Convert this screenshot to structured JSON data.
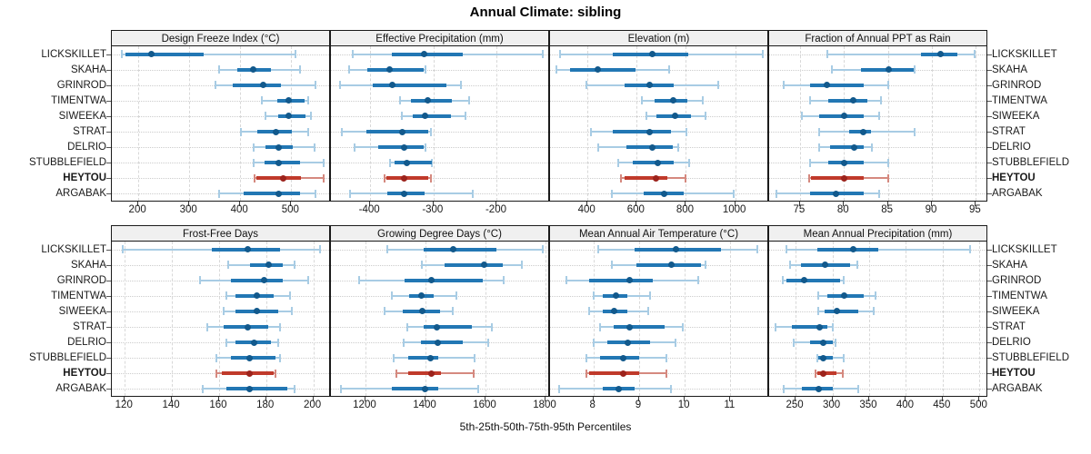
{
  "title": "Annual Climate: sibling",
  "caption": "5th-25th-50th-75th-95th Percentiles",
  "sites": [
    "LICKSKILLET",
    "SKAHA",
    "GRINROD",
    "TIMENTWA",
    "SIWEEKA",
    "STRAT",
    "DELRIO",
    "STUBBLEFIELD",
    "HEYTOU",
    "ARGABAK"
  ],
  "highlight_site": "HEYTOU",
  "percentiles": [
    5,
    25,
    50,
    75,
    95
  ],
  "colors": {
    "blue_dot": "#12598c",
    "blue_bar": "#2277b4",
    "blue_whisker": "#a8cce4",
    "red_dot": "#9c231c",
    "red_bar": "#c03a2b",
    "red_whisker": "#d5897f",
    "header_bg": "#f0f0f0",
    "panel_border": "#1a1a1a",
    "grid": "#d8d8d8"
  },
  "chart_data": [
    {
      "type": "dot-whisker",
      "title": "Design Freeze Index (°C)",
      "domain": [
        148,
        578
      ],
      "ticks": [
        200,
        300,
        400,
        500
      ],
      "rows": [
        {
          "site": "LICKSKILLET",
          "values": [
            168,
            175,
            225,
            328,
            508
          ]
        },
        {
          "site": "SKAHA",
          "values": [
            359,
            394,
            426,
            461,
            518
          ]
        },
        {
          "site": "GRINROD",
          "values": [
            351,
            386,
            445,
            480,
            547
          ]
        },
        {
          "site": "TIMENTWA",
          "values": [
            442,
            472,
            495,
            526,
            533
          ]
        },
        {
          "site": "SIWEEKA",
          "values": [
            450,
            475,
            495,
            528,
            539
          ]
        },
        {
          "site": "STRAT",
          "values": [
            401,
            434,
            470,
            502,
            534
          ]
        },
        {
          "site": "DELRIO",
          "values": [
            427,
            450,
            476,
            503,
            546
          ]
        },
        {
          "site": "STUBBLEFIELD",
          "values": [
            427,
            447,
            476,
            518,
            564
          ]
        },
        {
          "site": "HEYTOU",
          "values": [
            428,
            432,
            484,
            519,
            564
          ]
        },
        {
          "site": "ARGABAK",
          "values": [
            358,
            406,
            476,
            518,
            548
          ]
        }
      ]
    },
    {
      "type": "dot-whisker",
      "title": "Effective Precipitation (mm)",
      "domain": [
        -462,
        -116
      ],
      "ticks": [
        -400,
        -300,
        -200
      ],
      "rows": [
        {
          "site": "LICKSKILLET",
          "values": [
            -427,
            -366,
            -315,
            -254,
            -127
          ]
        },
        {
          "site": "SKAHA",
          "values": [
            -434,
            -405,
            -369,
            -316,
            -313
          ]
        },
        {
          "site": "GRINROD",
          "values": [
            -448,
            -396,
            -365,
            -279,
            -257
          ]
        },
        {
          "site": "TIMENTWA",
          "values": [
            -353,
            -335,
            -309,
            -271,
            -244
          ]
        },
        {
          "site": "SIWEEKA",
          "values": [
            -350,
            -333,
            -314,
            -273,
            -249
          ]
        },
        {
          "site": "STRAT",
          "values": [
            -445,
            -406,
            -350,
            -308,
            -304
          ]
        },
        {
          "site": "DELRIO",
          "values": [
            -424,
            -388,
            -347,
            -315,
            -313
          ]
        },
        {
          "site": "STUBBLEFIELD",
          "values": [
            -369,
            -361,
            -342,
            -303,
            -302
          ]
        },
        {
          "site": "HEYTOU",
          "values": [
            -377,
            -374,
            -347,
            -308,
            -304
          ]
        },
        {
          "site": "ARGABAK",
          "values": [
            -432,
            -373,
            -346,
            -314,
            -238
          ]
        }
      ]
    },
    {
      "type": "dot-whisker",
      "title": "Elevation (m)",
      "domain": [
        248,
        1138
      ],
      "ticks": [
        400,
        600,
        800,
        1000
      ],
      "rows": [
        {
          "site": "LICKSKILLET",
          "values": [
            288,
            502,
            662,
            809,
            1113
          ]
        },
        {
          "site": "SKAHA",
          "values": [
            273,
            330,
            441,
            594,
            732
          ]
        },
        {
          "site": "GRINROD",
          "values": [
            397,
            551,
            654,
            752,
            930
          ]
        },
        {
          "site": "TIMENTWA",
          "values": [
            622,
            671,
            749,
            805,
            868
          ]
        },
        {
          "site": "SIWEEKA",
          "values": [
            638,
            681,
            756,
            822,
            881
          ]
        },
        {
          "site": "STRAT",
          "values": [
            415,
            502,
            654,
            738,
            801
          ]
        },
        {
          "site": "DELRIO",
          "values": [
            444,
            558,
            662,
            745,
            769
          ]
        },
        {
          "site": "STUBBLEFIELD",
          "values": [
            524,
            585,
            685,
            752,
            812
          ]
        },
        {
          "site": "HEYTOU",
          "values": [
            535,
            551,
            680,
            725,
            800
          ]
        },
        {
          "site": "ARGABAK",
          "values": [
            498,
            630,
            711,
            790,
            995
          ]
        }
      ]
    },
    {
      "type": "dot-whisker",
      "title": "Fraction of Annual PPT as Rain",
      "domain": [
        71.5,
        96.4
      ],
      "ticks": [
        75,
        80,
        85,
        90,
        95
      ],
      "rows": [
        {
          "site": "LICKSKILLET",
          "values": [
            78.1,
            88.8,
            91.0,
            92.9,
            94.9
          ]
        },
        {
          "site": "SKAHA",
          "values": [
            78.6,
            81.9,
            85.1,
            87.9,
            88.0
          ]
        },
        {
          "site": "GRINROD",
          "values": [
            73.2,
            76.2,
            78.1,
            82.2,
            85.0
          ]
        },
        {
          "site": "TIMENTWA",
          "values": [
            76.2,
            78.2,
            81.1,
            82.7,
            84.2
          ]
        },
        {
          "site": "SIWEEKA",
          "values": [
            75.2,
            77.2,
            80.0,
            82.2,
            84.0
          ]
        },
        {
          "site": "STRAT",
          "values": [
            77.2,
            80.6,
            82.2,
            83.1,
            88.0
          ]
        },
        {
          "site": "DELRIO",
          "values": [
            77.2,
            78.4,
            81.2,
            82.2,
            83.2
          ]
        },
        {
          "site": "STUBBLEFIELD",
          "values": [
            76.2,
            78.2,
            80.0,
            82.2,
            85.0
          ]
        },
        {
          "site": "HEYTOU",
          "values": [
            76.0,
            76.3,
            80.0,
            82.2,
            85.0
          ]
        },
        {
          "site": "ARGABAK",
          "values": [
            72.3,
            76.1,
            79.1,
            82.2,
            84.0
          ]
        }
      ]
    },
    {
      "type": "dot-whisker",
      "title": "Frost-Free Days",
      "domain": [
        114.5,
        207.5
      ],
      "ticks": [
        120,
        140,
        160,
        180,
        200
      ],
      "rows": [
        {
          "site": "LICKSKILLET",
          "values": [
            119,
            157,
            172,
            186,
            203
          ]
        },
        {
          "site": "SKAHA",
          "values": [
            164,
            173,
            181,
            187,
            192
          ]
        },
        {
          "site": "GRINROD",
          "values": [
            152,
            165,
            179,
            187,
            198
          ]
        },
        {
          "site": "TIMENTWA",
          "values": [
            163,
            167,
            176,
            183,
            190
          ]
        },
        {
          "site": "SIWEEKA",
          "values": [
            162,
            167,
            176,
            185,
            191
          ]
        },
        {
          "site": "STRAT",
          "values": [
            155,
            162,
            172,
            181,
            186
          ]
        },
        {
          "site": "DELRIO",
          "values": [
            163,
            167,
            175,
            182,
            185
          ]
        },
        {
          "site": "STUBBLEFIELD",
          "values": [
            159,
            165,
            173,
            184,
            186
          ]
        },
        {
          "site": "HEYTOU",
          "values": [
            159,
            161,
            173,
            183,
            184
          ]
        },
        {
          "site": "ARGABAK",
          "values": [
            153,
            163,
            173,
            189,
            192
          ]
        }
      ]
    },
    {
      "type": "dot-whisker",
      "title": "Growing Degree Days (°C)",
      "domain": [
        1085,
        1815
      ],
      "ticks": [
        1200,
        1400,
        1600,
        1800
      ],
      "rows": [
        {
          "site": "LICKSKILLET",
          "values": [
            1272,
            1395,
            1491,
            1635,
            1790
          ]
        },
        {
          "site": "SKAHA",
          "values": [
            1389,
            1464,
            1595,
            1657,
            1721
          ]
        },
        {
          "site": "GRINROD",
          "values": [
            1180,
            1330,
            1420,
            1590,
            1662
          ]
        },
        {
          "site": "TIMENTWA",
          "values": [
            1288,
            1347,
            1387,
            1427,
            1502
          ]
        },
        {
          "site": "SIWEEKA",
          "values": [
            1264,
            1325,
            1390,
            1450,
            1491
          ]
        },
        {
          "site": "STRAT",
          "values": [
            1339,
            1395,
            1437,
            1555,
            1621
          ]
        },
        {
          "site": "DELRIO",
          "values": [
            1328,
            1384,
            1441,
            1523,
            1609
          ]
        },
        {
          "site": "STUBBLEFIELD",
          "values": [
            1295,
            1341,
            1418,
            1443,
            1564
          ]
        },
        {
          "site": "HEYTOU",
          "values": [
            1302,
            1341,
            1421,
            1453,
            1560
          ]
        },
        {
          "site": "ARGABAK",
          "values": [
            1117,
            1288,
            1397,
            1443,
            1576
          ]
        }
      ]
    },
    {
      "type": "dot-whisker",
      "title": "Mean Annual Air Temperature (°C)",
      "domain": [
        7.05,
        11.85
      ],
      "ticks": [
        8,
        9,
        10,
        11
      ],
      "rows": [
        {
          "site": "LICKSKILLET",
          "values": [
            8.1,
            8.9,
            9.8,
            10.8,
            11.6
          ]
        },
        {
          "site": "SKAHA",
          "values": [
            8.4,
            8.95,
            9.7,
            10.35,
            10.45
          ]
        },
        {
          "site": "GRINROD",
          "values": [
            7.4,
            7.9,
            8.8,
            9.3,
            10.3
          ]
        },
        {
          "site": "TIMENTWA",
          "values": [
            8.0,
            8.2,
            8.5,
            8.75,
            9.25
          ]
        },
        {
          "site": "SIWEEKA",
          "values": [
            7.9,
            8.2,
            8.45,
            8.75,
            9.2
          ]
        },
        {
          "site": "STRAT",
          "values": [
            8.15,
            8.45,
            8.8,
            9.55,
            9.95
          ]
        },
        {
          "site": "DELRIO",
          "values": [
            8.0,
            8.3,
            8.75,
            9.25,
            9.8
          ]
        },
        {
          "site": "STUBBLEFIELD",
          "values": [
            7.85,
            8.15,
            8.65,
            9.0,
            9.6
          ]
        },
        {
          "site": "HEYTOU",
          "values": [
            7.85,
            7.9,
            8.65,
            9.0,
            9.6
          ]
        },
        {
          "site": "ARGABAK",
          "values": [
            7.25,
            8.2,
            8.55,
            8.9,
            9.7
          ]
        }
      ]
    },
    {
      "type": "dot-whisker",
      "title": "Mean Annual Precipitation (mm)",
      "domain": [
        214,
        512
      ],
      "ticks": [
        250,
        300,
        350,
        400,
        450,
        500
      ],
      "rows": [
        {
          "site": "LICKSKILLET",
          "values": [
            238,
            280,
            328,
            362,
            487
          ]
        },
        {
          "site": "SKAHA",
          "values": [
            242,
            257,
            290,
            324,
            334
          ]
        },
        {
          "site": "GRINROD",
          "values": [
            232,
            238,
            262,
            310,
            315
          ]
        },
        {
          "site": "TIMENTWA",
          "values": [
            281,
            293,
            316,
            342,
            359
          ]
        },
        {
          "site": "SIWEEKA",
          "values": [
            281,
            289,
            306,
            335,
            356
          ]
        },
        {
          "site": "STRAT",
          "values": [
            223,
            245,
            283,
            293,
            300
          ]
        },
        {
          "site": "DELRIO",
          "values": [
            248,
            270,
            288,
            301,
            304
          ]
        },
        {
          "site": "STUBBLEFIELD",
          "values": [
            279,
            281,
            288,
            301,
            315
          ]
        },
        {
          "site": "HEYTOU",
          "values": [
            277,
            280,
            288,
            305,
            314
          ]
        },
        {
          "site": "ARGABAK",
          "values": [
            234,
            259,
            282,
            301,
            335
          ]
        }
      ]
    }
  ]
}
